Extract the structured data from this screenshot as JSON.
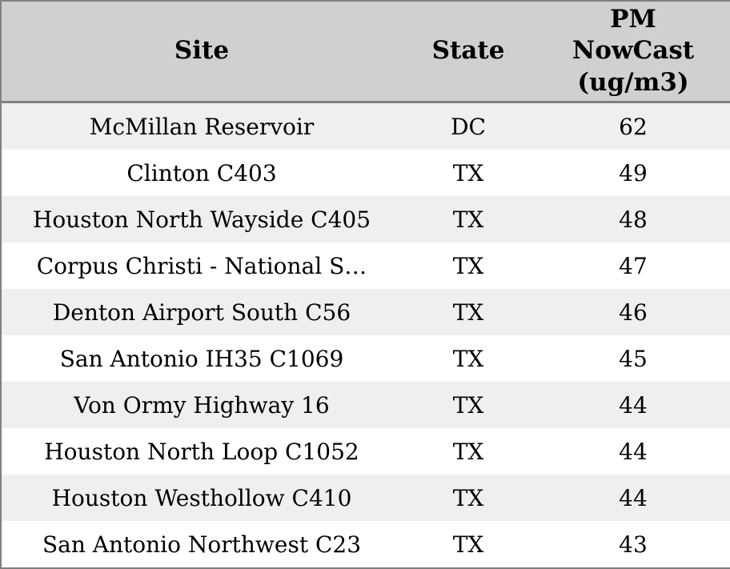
{
  "colors": {
    "header_bg": "#d0d0d0",
    "border": "#808080",
    "row_alt_bg": "#efefef",
    "row_bg": "#ffffff",
    "text": "#000000"
  },
  "chart_data": {
    "type": "table",
    "title": "",
    "columns": [
      "Site",
      "State",
      "PM NowCast (ug/m3)"
    ],
    "rows": [
      {
        "site": "McMillan Reservoir",
        "state": "DC",
        "pm_nowcast": "62"
      },
      {
        "site": "Clinton C403",
        "state": "TX",
        "pm_nowcast": "49"
      },
      {
        "site": "Houston North Wayside C405",
        "state": "TX",
        "pm_nowcast": "48"
      },
      {
        "site": "Corpus Christi - National S…",
        "state": "TX",
        "pm_nowcast": "47"
      },
      {
        "site": "Denton Airport South C56",
        "state": "TX",
        "pm_nowcast": "46"
      },
      {
        "site": "San Antonio IH35 C1069",
        "state": "TX",
        "pm_nowcast": "45"
      },
      {
        "site": "Von Ormy Highway 16",
        "state": "TX",
        "pm_nowcast": "44"
      },
      {
        "site": "Houston North Loop C1052",
        "state": "TX",
        "pm_nowcast": "44"
      },
      {
        "site": "Houston Westhollow C410",
        "state": "TX",
        "pm_nowcast": "44"
      },
      {
        "site": "San Antonio Northwest C23",
        "state": "TX",
        "pm_nowcast": "43"
      }
    ],
    "layout": {
      "alternating_rows": true,
      "first_data_row_shaded": true,
      "text_align": "center"
    }
  }
}
